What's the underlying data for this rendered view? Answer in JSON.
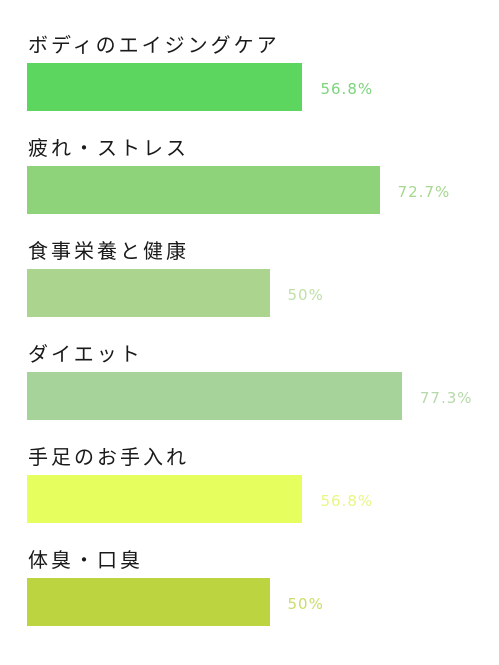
{
  "chart_data": {
    "type": "bar",
    "orientation": "horizontal",
    "categories": [
      "ボディのエイジングケア",
      "疲れ・ストレス",
      "食事栄養と健康",
      "ダイエット",
      "手足のお手入れ",
      "体臭・口臭"
    ],
    "values": [
      56.8,
      72.7,
      50,
      77.3,
      56.8,
      50
    ],
    "value_labels": [
      "56.8%",
      "72.7%",
      "50%",
      "77.3%",
      "56.8%",
      "50%"
    ],
    "unit": "%",
    "xlim": [
      0,
      100
    ],
    "colors": [
      "#5cd65e",
      "#8ed27a",
      "#abd48f",
      "#a6d39a",
      "#e6ff5f",
      "#bcd43f"
    ],
    "label_colors": [
      "#7bd47c",
      "#a6d890",
      "#bfe0a8",
      "#b6d9aa",
      "#e8f784",
      "#cbdc6a"
    ],
    "grid": false,
    "legend": "none"
  }
}
